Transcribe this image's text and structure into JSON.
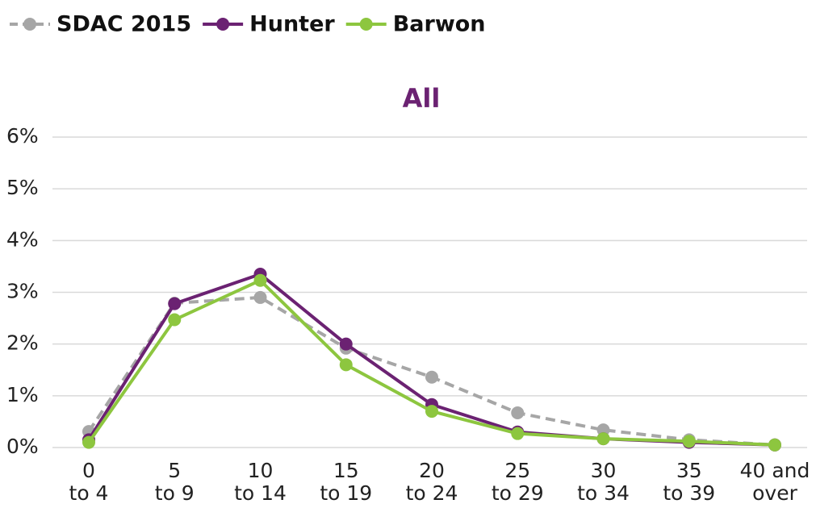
{
  "chart_data": {
    "type": "line",
    "title": "All",
    "categories": [
      "0\nto 4",
      "5\nto 9",
      "10\nto 14",
      "15\nto 19",
      "20\nto 24",
      "25\nto 29",
      "30\nto 34",
      "35\nto 39",
      "40 and\nover"
    ],
    "series": [
      {
        "name": "SDAC 2015",
        "color": "#a6a6a6",
        "dashed": true,
        "values": [
          0.31,
          2.79,
          2.9,
          1.92,
          1.36,
          0.67,
          0.34,
          0.15,
          0.05
        ]
      },
      {
        "name": "Hunter",
        "color": "#6b2272",
        "dashed": false,
        "values": [
          0.15,
          2.78,
          3.35,
          2.0,
          0.83,
          0.3,
          0.17,
          0.1,
          0.05
        ]
      },
      {
        "name": "Barwon",
        "color": "#8dc63f",
        "dashed": false,
        "values": [
          0.1,
          2.47,
          3.23,
          1.6,
          0.7,
          0.27,
          0.17,
          0.12,
          0.05
        ]
      }
    ],
    "ylim": [
      0,
      6
    ],
    "yticks": [
      {
        "value": 0,
        "label": "0%"
      },
      {
        "value": 1,
        "label": "1%"
      },
      {
        "value": 2,
        "label": "2%"
      },
      {
        "value": 3,
        "label": "3%"
      },
      {
        "value": 4,
        "label": "4%"
      },
      {
        "value": 5,
        "label": "5%"
      },
      {
        "value": 6,
        "label": "6%"
      }
    ],
    "grid": true,
    "legend": "top-left",
    "title_color": "#6b2272"
  }
}
